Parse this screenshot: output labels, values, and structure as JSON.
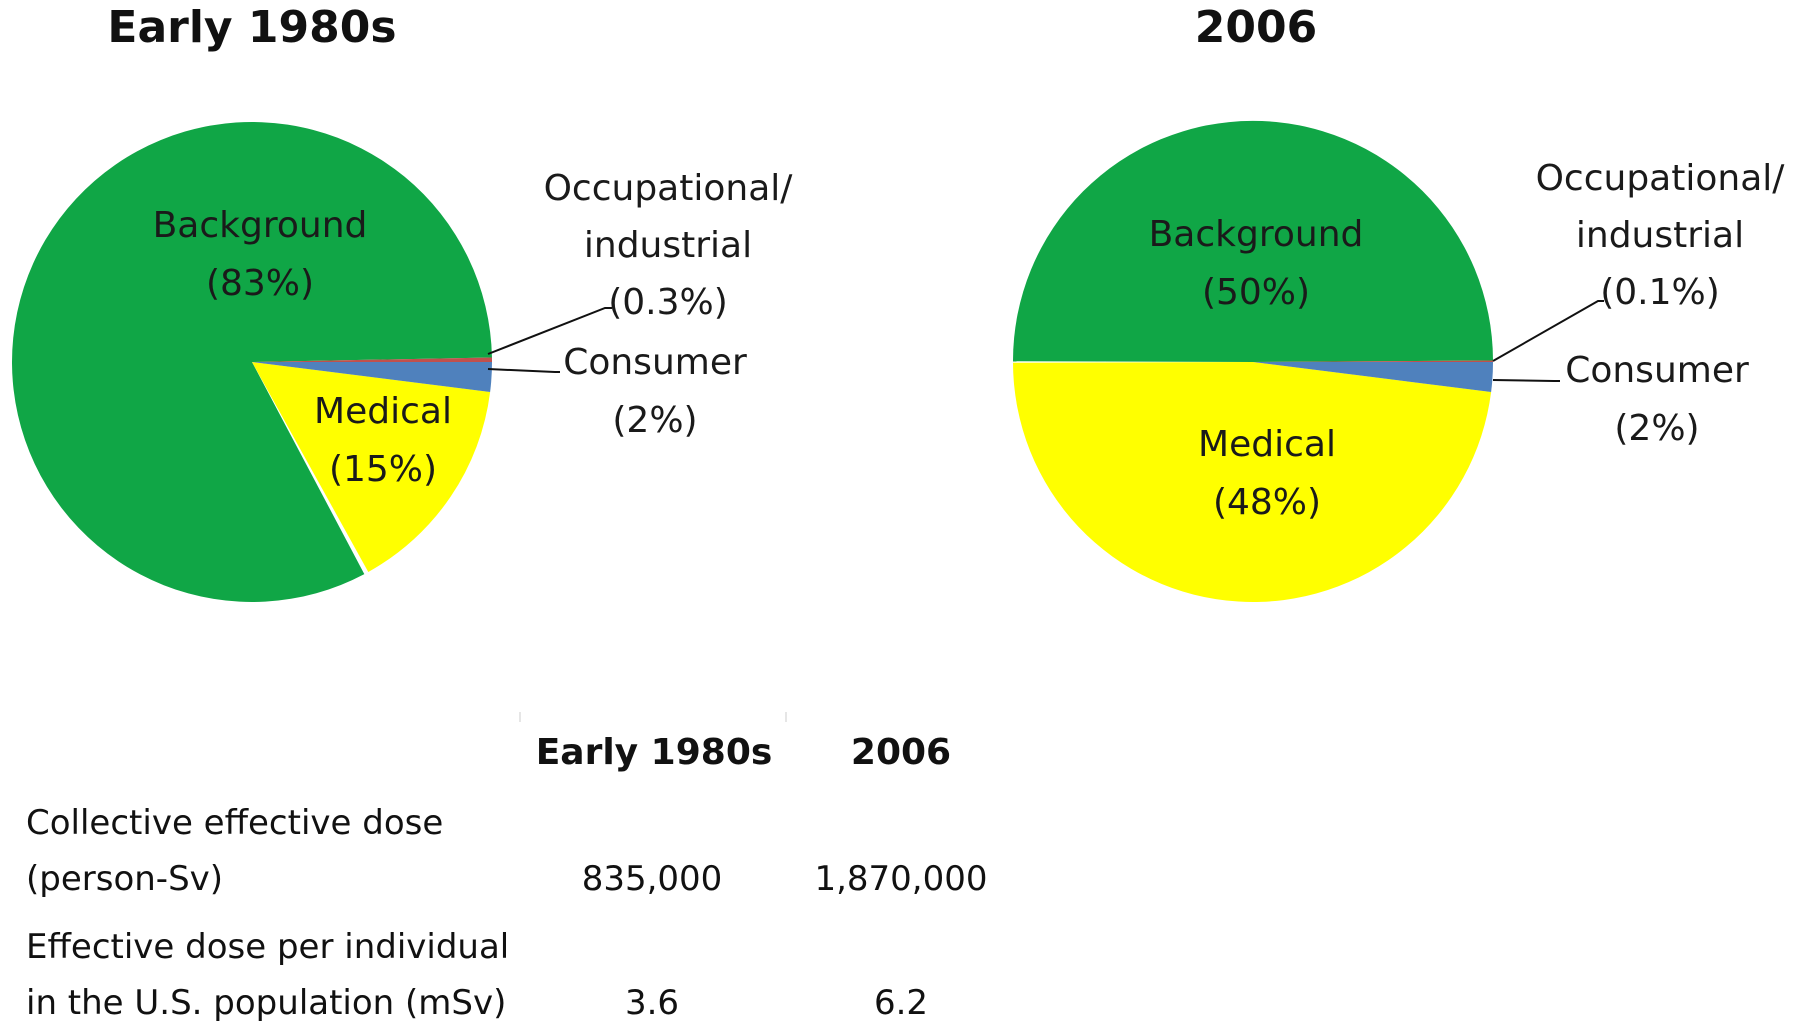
{
  "chart_data": [
    {
      "type": "pie",
      "title": "Early 1980s",
      "slices": [
        {
          "label": "Background",
          "pct_text": "(83%)",
          "value": 83,
          "color": "#10A646"
        },
        {
          "label": "Medical",
          "pct_text": "(15%)",
          "value": 15,
          "color": "#FFFF00"
        },
        {
          "label": "Consumer",
          "pct_text": "(2%)",
          "value": 2,
          "color": "#4F81BD"
        },
        {
          "label_lines": [
            "Occupational/",
            "industrial"
          ],
          "pct_text": "(0.3%)",
          "value": 0.3,
          "color": "#C0504D"
        }
      ]
    },
    {
      "type": "pie",
      "title": "2006",
      "slices": [
        {
          "label": "Background",
          "pct_text": "(50%)",
          "value": 50,
          "color": "#10A646"
        },
        {
          "label": "Medical",
          "pct_text": "(48%)",
          "value": 48,
          "color": "#FFFF00"
        },
        {
          "label": "Consumer",
          "pct_text": "(2%)",
          "value": 2,
          "color": "#4F81BD"
        },
        {
          "label_lines": [
            "Occupational/",
            "industrial"
          ],
          "pct_text": "(0.1%)",
          "value": 0.1,
          "color": "#C0504D"
        }
      ]
    },
    {
      "type": "table",
      "columns": [
        "",
        "Early 1980s",
        "2006"
      ],
      "rows": [
        {
          "label_lines": [
            "Collective effective dose",
            "(person-Sv)"
          ],
          "values": [
            "835,000",
            "1,870,000"
          ]
        },
        {
          "label_lines": [
            "Effective dose per individual",
            "in the U.S. population (mSv)"
          ],
          "values": [
            "3.6",
            "6.2"
          ]
        }
      ]
    }
  ]
}
